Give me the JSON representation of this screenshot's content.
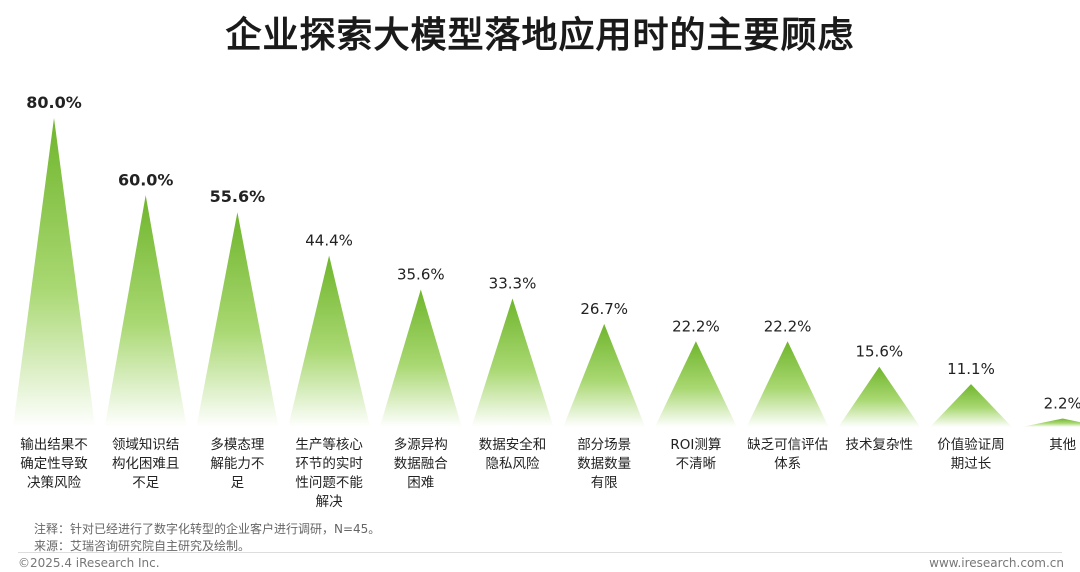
{
  "title": "企业探索大模型落地应用时的主要顾虑",
  "chart_data": {
    "type": "bar",
    "categories": [
      [
        "输出结果不",
        "确定性导致",
        "决策风险"
      ],
      [
        "领域知识结",
        "构化困难且",
        "不足"
      ],
      [
        "多模态理",
        "解能力不",
        "足"
      ],
      [
        "生产等核心",
        "环节的实时",
        "性问题不能",
        "解决"
      ],
      [
        "多源异构",
        "数据融合",
        "困难"
      ],
      [
        "数据安全和",
        "隐私风险"
      ],
      [
        "部分场景",
        "数据数量",
        "有限"
      ],
      [
        "ROI测算",
        "不清晰"
      ],
      [
        "缺乏可信评估",
        "体系"
      ],
      [
        "技术复杂性"
      ],
      [
        "价值验证周",
        "期过长"
      ],
      [
        "其他"
      ]
    ],
    "values": [
      80.0,
      60.0,
      55.6,
      44.4,
      35.6,
      33.3,
      26.7,
      22.2,
      22.2,
      15.6,
      11.1,
      2.2
    ],
    "value_labels": [
      "80.0%",
      "60.0%",
      "55.6%",
      "44.4%",
      "35.6%",
      "33.3%",
      "26.7%",
      "22.2%",
      "22.2%",
      "15.6%",
      "11.1%",
      "2.2%"
    ],
    "bold_labels_count": 3,
    "ylim": [
      0,
      80
    ],
    "grid": false,
    "colors": {
      "peak": "#6fb52c",
      "base": "#ffffff",
      "label": "#222222"
    }
  },
  "notes": {
    "note": "注释：针对已经进行了数字化转型的企业客户进行调研，N=45。",
    "source": "来源：艾瑞咨询研究院自主研究及绘制。"
  },
  "footer": {
    "copyright": "©2025.4 iResearch Inc.",
    "website": "www.iresearch.com.cn"
  }
}
